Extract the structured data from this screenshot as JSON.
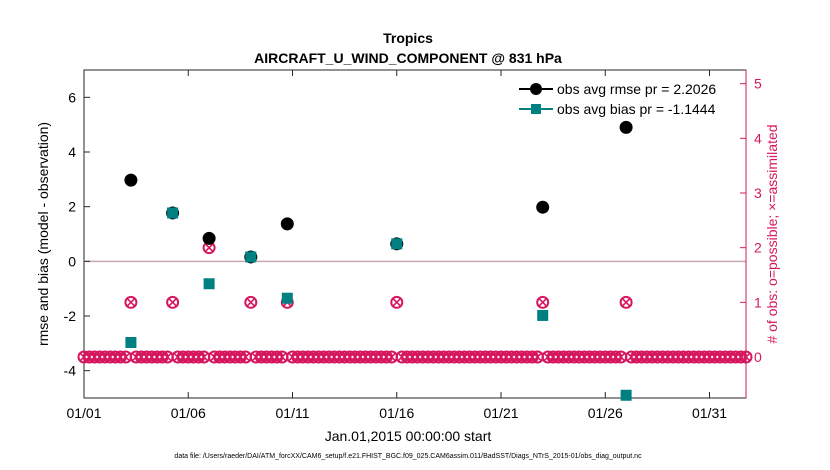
{
  "chart_data": {
    "type": "scatter",
    "title": "Tropics",
    "subtitle": "AIRCRAFT_U_WIND_COMPONENT @ 831 hPa",
    "xlabel": "Jan.01,2015 00:00:00 start",
    "ylabel": "rmse and bias (model - observation)",
    "ylabel_right": "# of obs: o=possible; ×=assimilated",
    "footnote": "data file: /Users/raeder/DAI/ATM_forcXX/CAM6_setup/f.e21.FHIST_BGC.f09_025.CAM6assim.011/BadSST/Diags_NTrS_2015-01/obs_diag_output.nc",
    "xlim": [
      0,
      31.75
    ],
    "ylim": [
      -5,
      7
    ],
    "ylim_right": [
      -0.75,
      5.25
    ],
    "x_ticks": [
      0,
      5,
      10,
      15,
      20,
      25,
      30
    ],
    "x_tick_labels": [
      "01/01",
      "01/06",
      "01/11",
      "01/16",
      "01/21",
      "01/26",
      "01/31"
    ],
    "y_ticks": [
      -4,
      -2,
      0,
      2,
      4,
      6
    ],
    "y_tick_labels": [
      "-4",
      "-2",
      "0",
      "2",
      "4",
      "6"
    ],
    "y_ticks_right": [
      0,
      1,
      2,
      3,
      4,
      5
    ],
    "y_tick_labels_right": [
      "0",
      "1",
      "2",
      "3",
      "4",
      "5"
    ],
    "zero_line": 0,
    "colors": {
      "rmse": "#000000",
      "bias": "#008080",
      "counts": "#d6175f",
      "zero_line": "#c8a7ac",
      "axes": "#262626"
    },
    "series": [
      {
        "name": "obs avg rmse",
        "legend": "obs avg rmse pr = 2.2026",
        "axis": "left",
        "x": [
          2.25,
          4.25,
          6.0,
          8.0,
          9.75,
          15.0,
          22.0,
          26.0
        ],
        "y": [
          2.97,
          1.77,
          0.84,
          0.16,
          1.37,
          0.64,
          1.98,
          4.9
        ]
      },
      {
        "name": "obs avg bias",
        "legend": "obs avg bias pr = -1.1444",
        "axis": "left",
        "x": [
          2.25,
          4.25,
          6.0,
          8.0,
          9.75,
          15.0,
          22.0,
          26.0
        ],
        "y": [
          -2.97,
          1.77,
          -0.82,
          0.16,
          -1.35,
          0.64,
          -1.98,
          -4.9
        ]
      },
      {
        "name": "# obs possible",
        "axis": "right",
        "x": [
          0.0,
          0.25,
          0.5,
          0.75,
          1.0,
          1.25,
          1.5,
          1.75,
          2.0,
          2.25,
          2.5,
          2.75,
          3.0,
          3.25,
          3.5,
          3.75,
          4.0,
          4.25,
          4.5,
          4.75,
          5.0,
          5.25,
          5.5,
          5.75,
          6.0,
          6.25,
          6.5,
          6.75,
          7.0,
          7.25,
          7.5,
          7.75,
          8.0,
          8.25,
          8.5,
          8.75,
          9.0,
          9.25,
          9.5,
          9.75,
          10.0,
          10.25,
          10.5,
          10.75,
          11.0,
          11.25,
          11.5,
          11.75,
          12.0,
          12.25,
          12.5,
          12.75,
          13.0,
          13.25,
          13.5,
          13.75,
          14.0,
          14.25,
          14.5,
          14.75,
          15.0,
          15.25,
          15.5,
          15.75,
          16.0,
          16.25,
          16.5,
          16.75,
          17.0,
          17.25,
          17.5,
          17.75,
          18.0,
          18.25,
          18.5,
          18.75,
          19.0,
          19.25,
          19.5,
          19.75,
          20.0,
          20.25,
          20.5,
          20.75,
          21.0,
          21.25,
          21.5,
          21.75,
          22.0,
          22.25,
          22.5,
          22.75,
          23.0,
          23.25,
          23.5,
          23.75,
          24.0,
          24.25,
          24.5,
          24.75,
          25.0,
          25.25,
          25.5,
          25.75,
          26.0,
          26.25,
          26.5,
          26.75,
          27.0,
          27.25,
          27.5,
          27.75,
          28.0,
          28.25,
          28.5,
          28.75,
          29.0,
          29.25,
          29.5,
          29.75,
          30.0,
          30.25,
          30.5,
          30.75,
          31.0,
          31.25,
          31.5,
          31.75
        ],
        "y": [
          0,
          0,
          0,
          0,
          0,
          0,
          0,
          0,
          0,
          1,
          0,
          0,
          0,
          0,
          0,
          0,
          0,
          1,
          0,
          0,
          0,
          0,
          0,
          0,
          2,
          0,
          0,
          0,
          0,
          0,
          0,
          0,
          1,
          0,
          0,
          0,
          0,
          0,
          0,
          1,
          0,
          0,
          0,
          0,
          0,
          0,
          0,
          0,
          0,
          0,
          0,
          0,
          0,
          0,
          0,
          0,
          0,
          0,
          0,
          0,
          1,
          0,
          0,
          0,
          0,
          0,
          0,
          0,
          0,
          0,
          0,
          0,
          0,
          0,
          0,
          0,
          0,
          0,
          0,
          0,
          0,
          0,
          0,
          0,
          0,
          0,
          0,
          0,
          1,
          0,
          0,
          0,
          0,
          0,
          0,
          0,
          0,
          0,
          0,
          0,
          0,
          0,
          0,
          0,
          1,
          0,
          0,
          0,
          0,
          0,
          0,
          0,
          0,
          0,
          0,
          0,
          0,
          0,
          0,
          0,
          0,
          0,
          0,
          0,
          0,
          0,
          0,
          0
        ]
      }
    ]
  }
}
